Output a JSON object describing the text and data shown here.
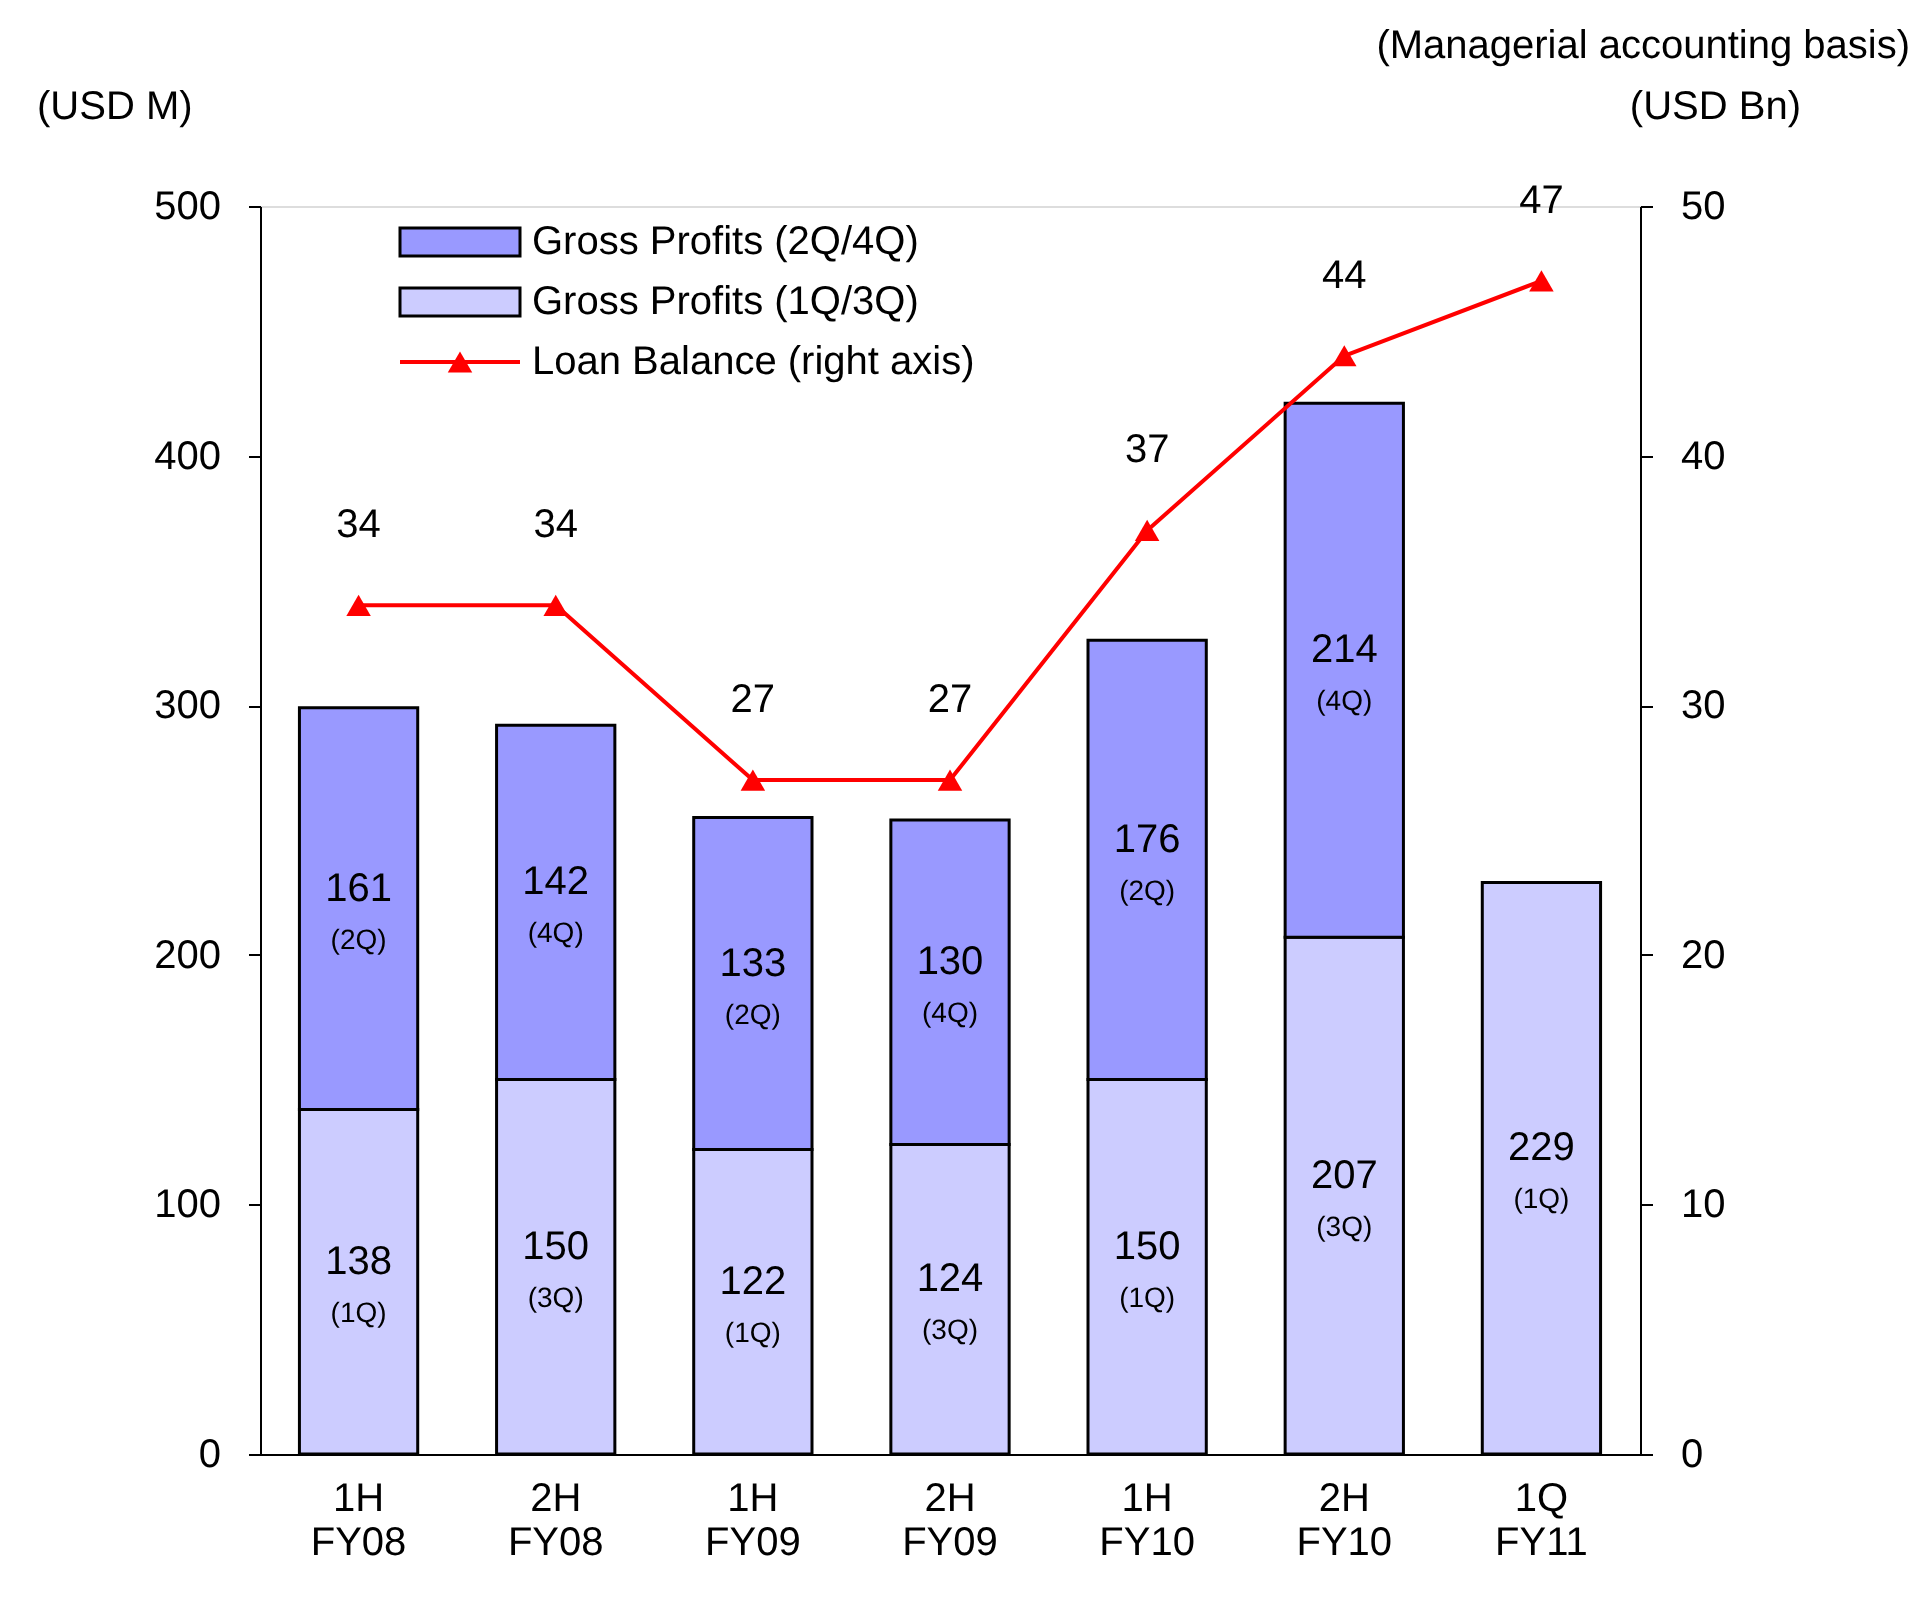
{
  "chart_data": {
    "type": "bar",
    "stacked": true,
    "categories": [
      "1H FY08",
      "2H FY08",
      "1H FY09",
      "2H FY09",
      "1H FY10",
      "2H FY10",
      "1Q FY11"
    ],
    "ylabel": "(USD M)",
    "y2label": "(USD Bn)",
    "ylim": [
      0,
      500
    ],
    "yticks": [
      0,
      100,
      200,
      300,
      400,
      500
    ],
    "y2lim": [
      0,
      50
    ],
    "y2ticks": [
      0,
      10,
      20,
      30,
      40,
      50
    ],
    "grid": false,
    "legend": "top left",
    "data_labels": true,
    "series": [
      {
        "name": "Gross Profits (1Q/3Q)",
        "color": "#ccccff",
        "values": [
          138,
          150,
          122,
          124,
          150,
          207,
          229
        ],
        "value_labels": [
          "138 (1Q)",
          "150 (3Q)",
          "122 (1Q)",
          "124 (3Q)",
          "150 (1Q)",
          "207 (3Q)",
          "229 (1Q)"
        ]
      },
      {
        "name": "Gross Profits (2Q/4Q)",
        "color": "#9999ff",
        "values": [
          161,
          142,
          133,
          130,
          176,
          214,
          null
        ],
        "value_labels": [
          "161 (2Q)",
          "142 (4Q)",
          "133 (2Q)",
          "130 (4Q)",
          "176 (2Q)",
          "214 (4Q)",
          null
        ]
      },
      {
        "name": "Loan Balance (right axis)",
        "type": "line",
        "axis": "y2",
        "color": "#ff0000",
        "marker": "triangle",
        "values": [
          34,
          34,
          27,
          27,
          37,
          44,
          47
        ]
      }
    ],
    "annotations": [
      "(Managerial accounting basis)"
    ]
  }
}
